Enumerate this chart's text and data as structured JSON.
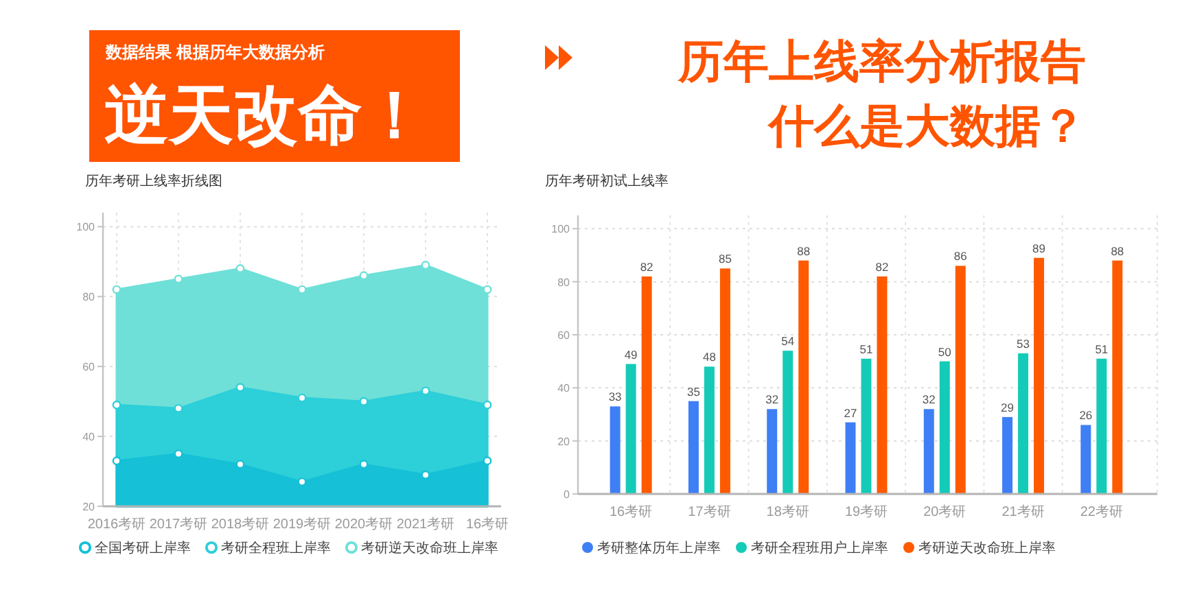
{
  "chart_data": [
    {
      "type": "other",
      "title": "逆天改命！",
      "subtitle": "数据结果 根据历年大数据分析"
    },
    {
      "type": "other",
      "title": "历年上线率分析报告",
      "subtitle": "什么是大数据？"
    },
    {
      "type": "area",
      "title": "历年考研上线率折线图",
      "categories": [
        "2016考研",
        "2017考研",
        "2018考研",
        "2019考研",
        "2020考研",
        "2021考研",
        "16考研"
      ],
      "series": [
        {
          "name": "全国考研上岸率",
          "color": "#16c0d6",
          "values": [
            33,
            35,
            32,
            27,
            32,
            29,
            33
          ]
        },
        {
          "name": "考研全程班上岸率",
          "color": "#2dcfd9",
          "values": [
            49,
            48,
            54,
            51,
            50,
            53,
            49
          ]
        },
        {
          "name": "考研逆天改命班上岸率",
          "color": "#6ee0d8",
          "values": [
            82,
            85,
            88,
            82,
            86,
            89,
            82
          ]
        }
      ],
      "ylim": [
        20,
        104
      ],
      "yticks": [
        20,
        40,
        60,
        80,
        100
      ],
      "grid": true,
      "legend": "bottom",
      "marker": "circle"
    },
    {
      "type": "bar",
      "title": "历年考研初试上线率",
      "categories": [
        "16考研",
        "17考研",
        "18考研",
        "19考研",
        "20考研",
        "21考研",
        "22考研"
      ],
      "series": [
        {
          "name": "考研整体历年上岸率",
          "color": "#3f7ff5",
          "values": [
            33,
            35,
            32,
            27,
            32,
            29,
            26
          ]
        },
        {
          "name": "考研全程班用户上岸率",
          "color": "#14cbb8",
          "values": [
            49,
            48,
            54,
            51,
            50,
            53,
            51
          ]
        },
        {
          "name": "考研逆天改命班上岸率",
          "color": "#ff5a00",
          "values": [
            82,
            85,
            88,
            82,
            86,
            89,
            88
          ]
        }
      ],
      "ylim": [
        0,
        105
      ],
      "yticks": [
        0,
        20,
        40,
        60,
        80,
        100
      ],
      "grid": true,
      "legend": "bottom",
      "data_labels": true
    }
  ]
}
